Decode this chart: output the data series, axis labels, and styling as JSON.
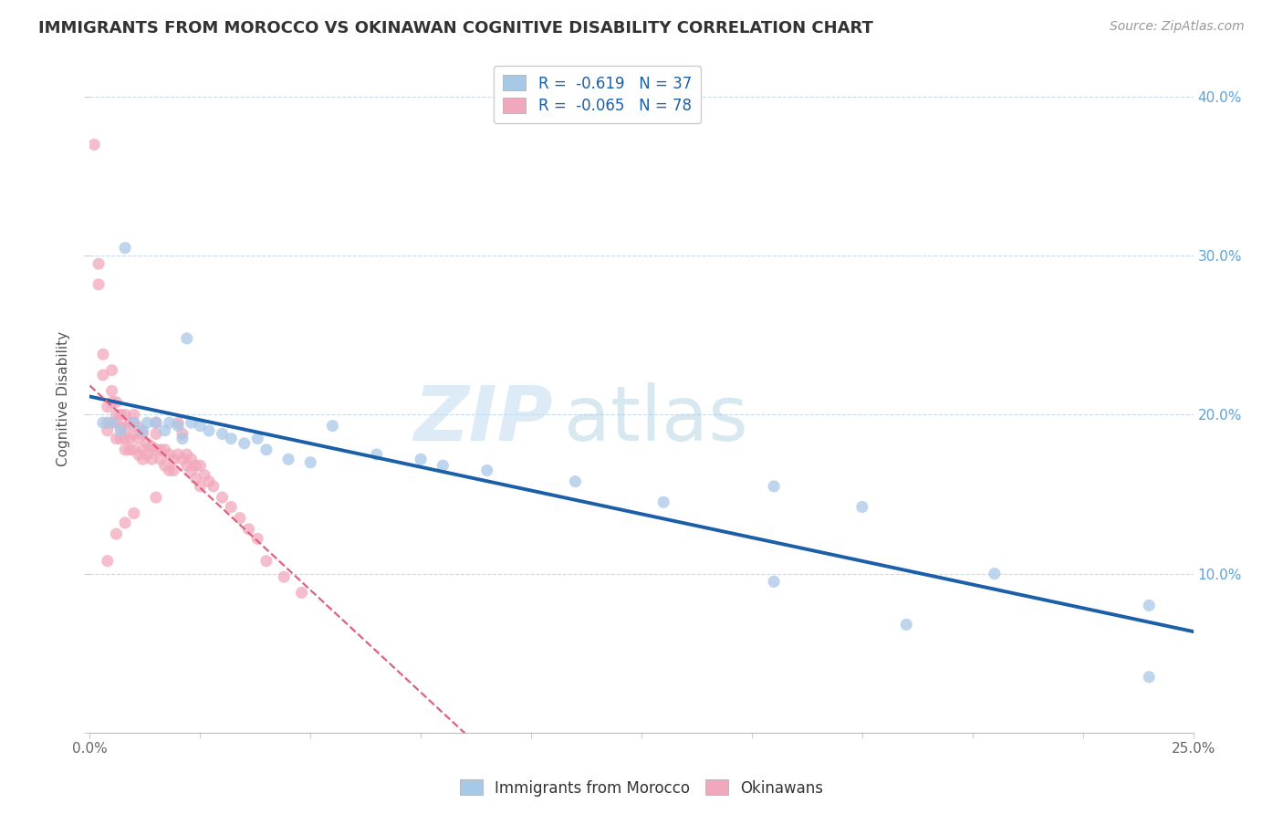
{
  "title": "IMMIGRANTS FROM MOROCCO VS OKINAWAN COGNITIVE DISABILITY CORRELATION CHART",
  "source": "Source: ZipAtlas.com",
  "ylabel": "Cognitive Disability",
  "right_yticks": [
    "40.0%",
    "30.0%",
    "20.0%",
    "10.0%"
  ],
  "right_ytick_vals": [
    0.4,
    0.3,
    0.2,
    0.1
  ],
  "legend_blue_r": "-0.619",
  "legend_blue_n": "37",
  "legend_pink_r": "-0.065",
  "legend_pink_n": "78",
  "blue_color": "#a8c8e8",
  "pink_color": "#f2a8bc",
  "blue_line_color": "#1a5fa8",
  "pink_line_color": "#e06080",
  "xlim": [
    0.0,
    0.25
  ],
  "ylim": [
    0.0,
    0.42
  ],
  "blue_scatter_x": [
    0.003,
    0.005,
    0.007,
    0.008,
    0.01,
    0.012,
    0.013,
    0.015,
    0.017,
    0.018,
    0.02,
    0.021,
    0.022,
    0.023,
    0.025,
    0.027,
    0.03,
    0.032,
    0.035,
    0.038,
    0.04,
    0.045,
    0.05,
    0.055,
    0.065,
    0.075,
    0.08,
    0.09,
    0.11,
    0.13,
    0.155,
    0.175,
    0.155,
    0.205,
    0.24,
    0.185,
    0.24
  ],
  "blue_scatter_y": [
    0.195,
    0.195,
    0.19,
    0.305,
    0.195,
    0.19,
    0.195,
    0.195,
    0.19,
    0.195,
    0.193,
    0.185,
    0.248,
    0.195,
    0.193,
    0.19,
    0.188,
    0.185,
    0.182,
    0.185,
    0.178,
    0.172,
    0.17,
    0.193,
    0.175,
    0.172,
    0.168,
    0.165,
    0.158,
    0.145,
    0.155,
    0.142,
    0.095,
    0.1,
    0.08,
    0.068,
    0.035
  ],
  "pink_scatter_x": [
    0.001,
    0.002,
    0.002,
    0.003,
    0.003,
    0.004,
    0.004,
    0.004,
    0.005,
    0.005,
    0.005,
    0.006,
    0.006,
    0.006,
    0.006,
    0.007,
    0.007,
    0.007,
    0.008,
    0.008,
    0.008,
    0.008,
    0.009,
    0.009,
    0.009,
    0.01,
    0.01,
    0.01,
    0.01,
    0.011,
    0.011,
    0.011,
    0.012,
    0.012,
    0.012,
    0.013,
    0.013,
    0.014,
    0.014,
    0.015,
    0.015,
    0.015,
    0.016,
    0.016,
    0.017,
    0.017,
    0.018,
    0.018,
    0.019,
    0.019,
    0.02,
    0.02,
    0.021,
    0.021,
    0.022,
    0.022,
    0.023,
    0.023,
    0.024,
    0.024,
    0.025,
    0.026,
    0.027,
    0.028,
    0.03,
    0.032,
    0.034,
    0.036,
    0.038,
    0.04,
    0.044,
    0.048,
    0.025,
    0.015,
    0.01,
    0.008,
    0.006,
    0.004
  ],
  "pink_scatter_y": [
    0.37,
    0.295,
    0.282,
    0.238,
    0.225,
    0.205,
    0.195,
    0.19,
    0.228,
    0.215,
    0.208,
    0.208,
    0.2,
    0.195,
    0.185,
    0.2,
    0.192,
    0.185,
    0.2,
    0.192,
    0.185,
    0.178,
    0.195,
    0.185,
    0.178,
    0.2,
    0.195,
    0.188,
    0.178,
    0.192,
    0.185,
    0.175,
    0.188,
    0.178,
    0.172,
    0.182,
    0.175,
    0.18,
    0.172,
    0.195,
    0.188,
    0.178,
    0.178,
    0.172,
    0.178,
    0.168,
    0.175,
    0.165,
    0.172,
    0.165,
    0.195,
    0.175,
    0.188,
    0.172,
    0.175,
    0.168,
    0.172,
    0.165,
    0.168,
    0.16,
    0.168,
    0.162,
    0.158,
    0.155,
    0.148,
    0.142,
    0.135,
    0.128,
    0.122,
    0.108,
    0.098,
    0.088,
    0.155,
    0.148,
    0.138,
    0.132,
    0.125,
    0.108
  ]
}
